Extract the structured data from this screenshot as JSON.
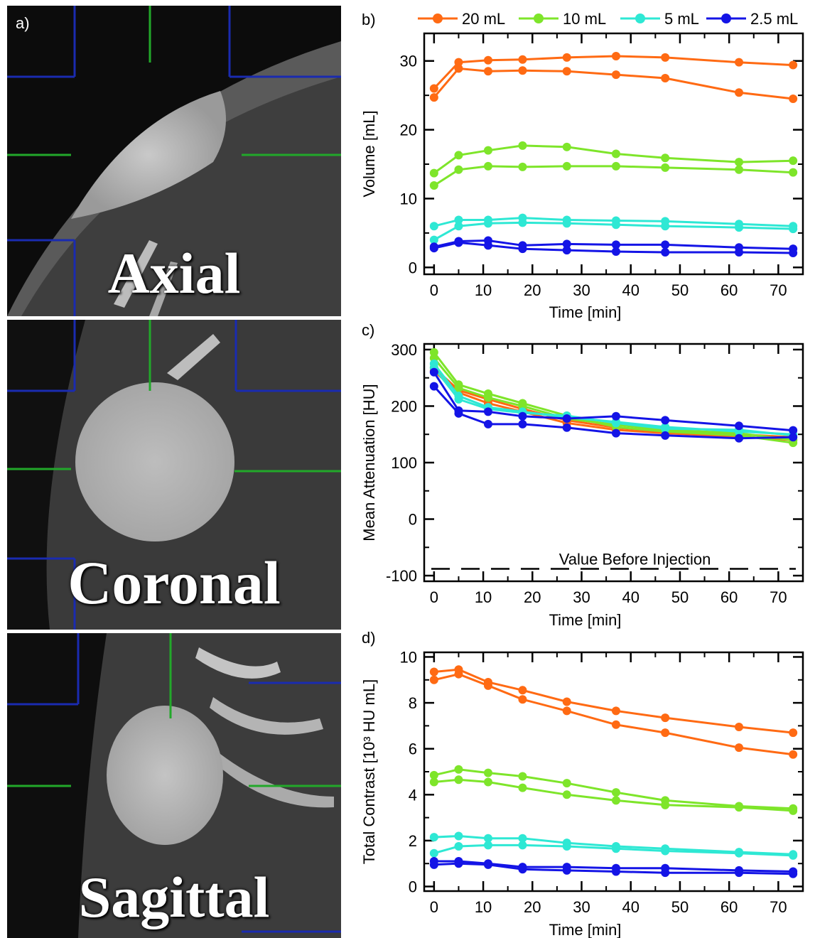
{
  "panel_a": {
    "label": "a)",
    "views": [
      "Axial",
      "Coronal",
      "Sagittal"
    ]
  },
  "legend": [
    {
      "name": "20 mL",
      "color": "#ff6a13"
    },
    {
      "name": "10 mL",
      "color": "#7ee52a"
    },
    {
      "name": "5 mL",
      "color": "#2ee8d4"
    },
    {
      "name": "2.5 mL",
      "color": "#1414e6"
    }
  ],
  "chart_data": [
    {
      "panel": "b)",
      "type": "line",
      "xlabel": "Time [min]",
      "ylabel": "Volume [mL]",
      "xlim": [
        -2,
        75
      ],
      "ylim": [
        -1,
        34
      ],
      "xticks": [
        0,
        10,
        20,
        30,
        40,
        50,
        60,
        70
      ],
      "yticks": [
        0,
        10,
        20,
        30
      ],
      "x": [
        0,
        5,
        11,
        18,
        27,
        37,
        47,
        62,
        73
      ],
      "series": [
        {
          "name": "20 mL",
          "color": "#ff6a13",
          "values": [
            26.0,
            29.8,
            30.1,
            30.2,
            30.5,
            30.7,
            30.5,
            29.8,
            29.4
          ]
        },
        {
          "name": "20 mL",
          "color": "#ff6a13",
          "values": [
            24.7,
            28.9,
            28.5,
            28.6,
            28.5,
            28.0,
            27.5,
            25.4,
            24.5
          ]
        },
        {
          "name": "10 mL",
          "color": "#7ee52a",
          "values": [
            13.7,
            16.3,
            17.0,
            17.7,
            17.5,
            16.5,
            15.9,
            15.3,
            15.5
          ]
        },
        {
          "name": "10 mL",
          "color": "#7ee52a",
          "values": [
            11.9,
            14.2,
            14.7,
            14.6,
            14.7,
            14.7,
            14.5,
            14.2,
            13.8
          ]
        },
        {
          "name": "5 mL",
          "color": "#2ee8d4",
          "values": [
            6.0,
            6.9,
            6.9,
            7.2,
            6.9,
            6.8,
            6.7,
            6.3,
            6.0
          ]
        },
        {
          "name": "5 mL",
          "color": "#2ee8d4",
          "values": [
            4.0,
            6.0,
            6.4,
            6.5,
            6.4,
            6.2,
            6.0,
            5.8,
            5.6
          ]
        },
        {
          "name": "2.5 mL",
          "color": "#1414e6",
          "values": [
            3.0,
            3.8,
            3.9,
            3.2,
            3.4,
            3.3,
            3.3,
            2.9,
            2.7
          ]
        },
        {
          "name": "2.5 mL",
          "color": "#1414e6",
          "values": [
            2.8,
            3.6,
            3.2,
            2.7,
            2.5,
            2.3,
            2.2,
            2.2,
            2.1
          ]
        }
      ]
    },
    {
      "panel": "c)",
      "type": "line",
      "xlabel": "Time [min]",
      "ylabel": "Mean Attenuation [HU]",
      "xlim": [
        -2,
        75
      ],
      "ylim": [
        -110,
        310
      ],
      "xticks": [
        0,
        10,
        20,
        30,
        40,
        50,
        60,
        70
      ],
      "yticks": [
        -100,
        0,
        100,
        200,
        300
      ],
      "x": [
        0,
        5,
        11,
        18,
        27,
        37,
        47,
        62,
        73
      ],
      "reference_line": {
        "label": "Value Before Injection",
        "y": -88
      },
      "series": [
        {
          "name": "20 mL",
          "color": "#ff6a13",
          "values": [
            268,
            228,
            212,
            195,
            175,
            162,
            155,
            150,
            145
          ]
        },
        {
          "name": "20 mL",
          "color": "#ff6a13",
          "values": [
            262,
            224,
            205,
            190,
            170,
            158,
            152,
            146,
            140
          ]
        },
        {
          "name": "10 mL",
          "color": "#7ee52a",
          "values": [
            295,
            238,
            222,
            205,
            183,
            163,
            155,
            148,
            135
          ]
        },
        {
          "name": "10 mL",
          "color": "#7ee52a",
          "values": [
            285,
            232,
            215,
            200,
            178,
            167,
            158,
            152,
            140
          ]
        },
        {
          "name": "5 mL",
          "color": "#2ee8d4",
          "values": [
            275,
            218,
            198,
            190,
            180,
            172,
            163,
            155,
            150
          ]
        },
        {
          "name": "5 mL",
          "color": "#2ee8d4",
          "values": [
            268,
            212,
            195,
            188,
            183,
            170,
            160,
            158,
            148
          ]
        },
        {
          "name": "2.5 mL",
          "color": "#1414e6",
          "values": [
            260,
            192,
            190,
            182,
            178,
            182,
            175,
            165,
            157
          ]
        },
        {
          "name": "2.5 mL",
          "color": "#1414e6",
          "values": [
            235,
            187,
            168,
            168,
            162,
            152,
            148,
            143,
            145
          ]
        }
      ]
    },
    {
      "panel": "d)",
      "type": "line",
      "xlabel": "Time [min]",
      "ylabel": "Total Contrast [10³ HU mL]",
      "xlim": [
        -2,
        75
      ],
      "ylim": [
        -0.2,
        10.2
      ],
      "xticks": [
        0,
        10,
        20,
        30,
        40,
        50,
        60,
        70
      ],
      "yticks": [
        0,
        2,
        4,
        6,
        8,
        10
      ],
      "x": [
        0,
        5,
        11,
        18,
        27,
        37,
        47,
        62,
        73
      ],
      "series": [
        {
          "name": "20 mL",
          "color": "#ff6a13",
          "values": [
            9.35,
            9.45,
            8.9,
            8.55,
            8.05,
            7.65,
            7.35,
            6.95,
            6.7
          ]
        },
        {
          "name": "20 mL",
          "color": "#ff6a13",
          "values": [
            9.0,
            9.25,
            8.75,
            8.15,
            7.65,
            7.05,
            6.7,
            6.05,
            5.75
          ]
        },
        {
          "name": "10 mL",
          "color": "#7ee52a",
          "values": [
            4.85,
            5.1,
            4.95,
            4.8,
            4.5,
            4.1,
            3.75,
            3.5,
            3.4
          ]
        },
        {
          "name": "10 mL",
          "color": "#7ee52a",
          "values": [
            4.55,
            4.65,
            4.55,
            4.3,
            4.0,
            3.75,
            3.55,
            3.45,
            3.3
          ]
        },
        {
          "name": "5 mL",
          "color": "#2ee8d4",
          "values": [
            2.15,
            2.2,
            2.1,
            2.1,
            1.9,
            1.75,
            1.65,
            1.5,
            1.4
          ]
        },
        {
          "name": "5 mL",
          "color": "#2ee8d4",
          "values": [
            1.45,
            1.75,
            1.8,
            1.8,
            1.75,
            1.65,
            1.55,
            1.45,
            1.35
          ]
        },
        {
          "name": "2.5 mL",
          "color": "#1414e6",
          "values": [
            1.1,
            1.1,
            1.0,
            0.85,
            0.85,
            0.8,
            0.8,
            0.7,
            0.65
          ]
        },
        {
          "name": "2.5 mL",
          "color": "#1414e6",
          "values": [
            0.95,
            1.0,
            0.95,
            0.75,
            0.7,
            0.65,
            0.6,
            0.6,
            0.55
          ]
        }
      ]
    }
  ]
}
